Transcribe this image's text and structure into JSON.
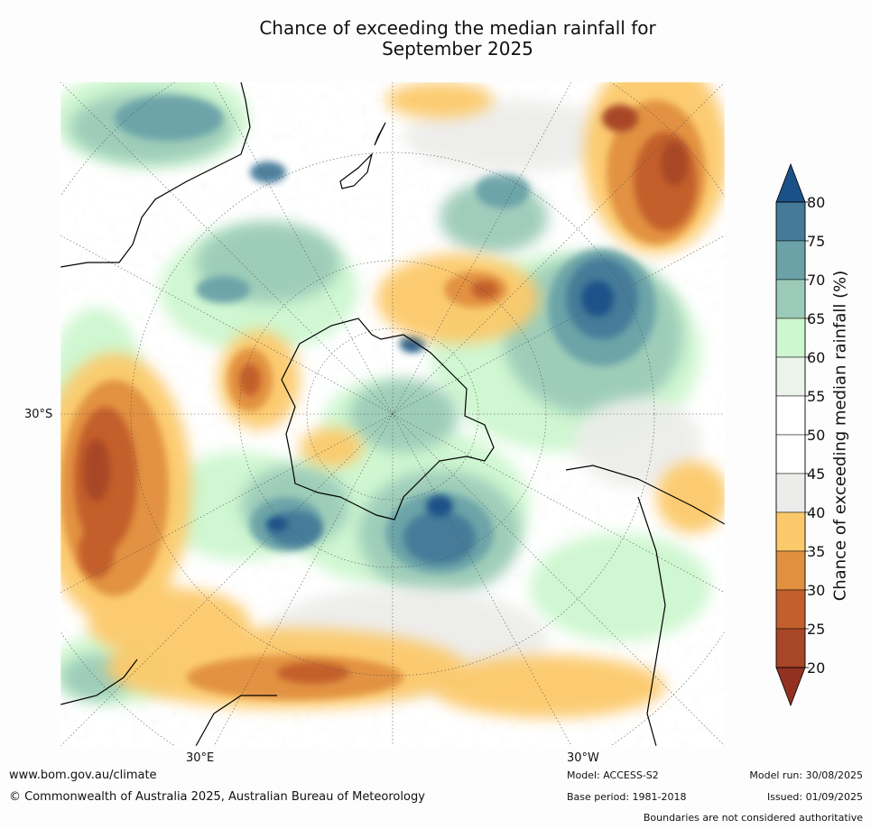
{
  "title_line1": "Chance of exceeding the median rainfall for",
  "title_line2": "September 2025",
  "map": {
    "lat_label": "30°S",
    "lon_label_east": "30°E",
    "lon_label_west": "30°W"
  },
  "colorbar": {
    "label": "Chance of exceeding median rainfall (%)",
    "ticks": [
      "80",
      "75",
      "70",
      "65",
      "60",
      "55",
      "50",
      "45",
      "40",
      "35",
      "30",
      "25",
      "20"
    ],
    "colors": [
      "#1b5189",
      "#457a99",
      "#6aa2a8",
      "#9bcbb8",
      "#cdf7cf",
      "#ebf4ea",
      "#ffffff",
      "#ffffff",
      "#ececea",
      "#fcc96a",
      "#e1903f",
      "#c35f2c",
      "#a84628",
      "#923120"
    ]
  },
  "footer": {
    "website": "www.bom.gov.au/climate",
    "copyright": "© Commonwealth of Australia 2025, Australian Bureau of Meteorology",
    "model": "Model: ACCESS-S2",
    "base_period": "Base period: 1981-2018",
    "model_run": "Model run: 30/08/2025",
    "issued": "Issued: 01/09/2025",
    "disclaimer": "Boundaries are not considered authoritative"
  }
}
